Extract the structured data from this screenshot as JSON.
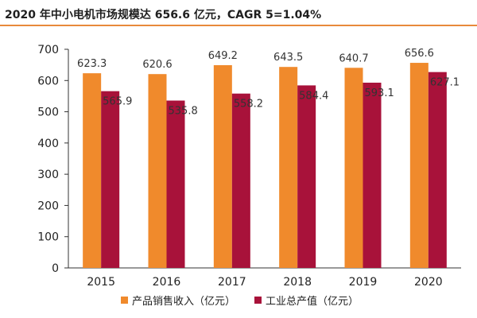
{
  "title": "2020 年中小电机市场规模达 656.6 亿元，CAGR 5=1.04%",
  "colors": {
    "title_rule": "#e8893b",
    "series_1": "#f08a2c",
    "series_2": "#a8123a"
  },
  "chart_data": {
    "type": "bar",
    "title": "2020 年中小电机市场规模达 656.6 亿元，CAGR 5=1.04%",
    "xlabel": "",
    "ylabel": "",
    "categories": [
      "2015",
      "2016",
      "2017",
      "2018",
      "2019",
      "2020"
    ],
    "series": [
      {
        "name": "产品销售收入（亿元）",
        "values": [
          623.3,
          620.6,
          649.2,
          643.5,
          640.7,
          656.6
        ],
        "labels": [
          "623.3",
          "620.6",
          "649.2",
          "643.5",
          "640.7",
          "656.6"
        ],
        "color": "#f08a2c"
      },
      {
        "name": "工业总产值（亿元）",
        "values": [
          565.9,
          535.8,
          558.2,
          584.4,
          593.1,
          627.1
        ],
        "labels": [
          "565.9",
          "535.8",
          "558.2",
          "584.4",
          "593.1",
          "627.1"
        ],
        "color": "#a8123a"
      }
    ],
    "ylim": [
      0,
      700
    ],
    "yticks": [
      0,
      100,
      200,
      300,
      400,
      500,
      600,
      700
    ],
    "ytick_labels": [
      "0",
      "100",
      "200",
      "300",
      "400",
      "500",
      "600",
      "700"
    ],
    "grid": false,
    "legend_position": "bottom-center"
  }
}
